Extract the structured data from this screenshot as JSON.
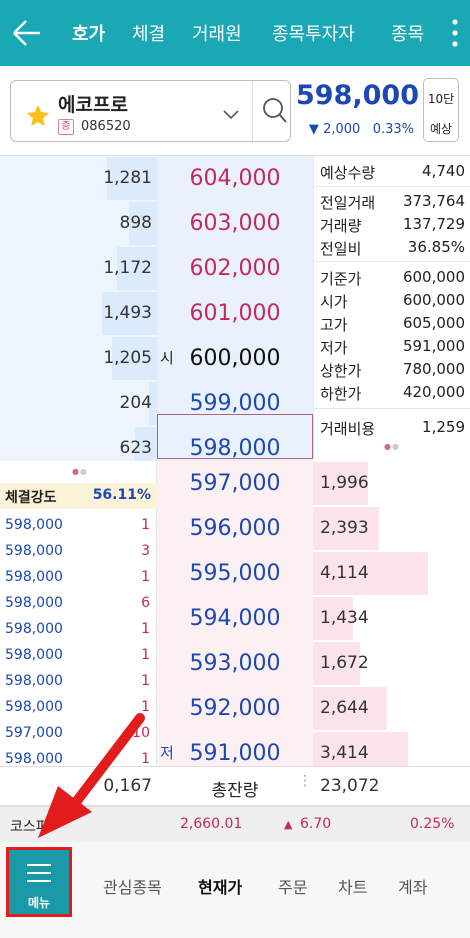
{
  "header": {
    "tabs": [
      {
        "label": "호가",
        "active": true
      },
      {
        "label": "체결",
        "active": false
      },
      {
        "label": "거래원",
        "active": false
      },
      {
        "label": "종목투자자",
        "active": false
      },
      {
        "label": "종목",
        "active": false
      }
    ]
  },
  "stock": {
    "name": "에코프로",
    "market_badge": "증",
    "code": "086520",
    "price": "598,000",
    "change": "2,000",
    "change_pct": "0.33%",
    "depth_button": "10단",
    "expect_button": "예상"
  },
  "orderbook": {
    "sell_rows": [
      {
        "qty": "1,281",
        "price": "604,000",
        "mark": ""
      },
      {
        "qty": "898",
        "price": "603,000",
        "mark": ""
      },
      {
        "qty": "1,172",
        "price": "602,000",
        "mark": ""
      },
      {
        "qty": "1,493",
        "price": "601,000",
        "mark": ""
      },
      {
        "qty": "1,205",
        "price": "600,000",
        "mark": "시"
      },
      {
        "qty": "204",
        "price": "599,000",
        "mark": ""
      },
      {
        "qty": "623",
        "price": "598,000",
        "mark": ""
      }
    ],
    "buy_rows": [
      {
        "price": "597,000",
        "qty": "1,996",
        "mark": ""
      },
      {
        "price": "596,000",
        "qty": "2,393",
        "mark": ""
      },
      {
        "price": "595,000",
        "qty": "4,114",
        "mark": ""
      },
      {
        "price": "594,000",
        "qty": "1,434",
        "mark": ""
      },
      {
        "price": "593,000",
        "qty": "1,672",
        "mark": ""
      },
      {
        "price": "592,000",
        "qty": "2,644",
        "mark": ""
      },
      {
        "price": "591,000",
        "qty": "3,414",
        "mark": "저"
      }
    ],
    "total_label": "총잔량",
    "total_sell": "0,167",
    "total_buy": "23,072"
  },
  "stats": {
    "expected_qty_label": "예상수량",
    "expected_qty": "4,740",
    "prev_volume_label": "전일거래",
    "prev_volume": "373,764",
    "volume_label": "거래량",
    "volume": "137,729",
    "prev_ratio_label": "전일비",
    "prev_ratio": "36.85%",
    "base_label": "기준가",
    "base": "600,000",
    "open_label": "시가",
    "open": "600,000",
    "high_label": "고가",
    "high": "605,000",
    "low_label": "저가",
    "low": "591,000",
    "upper_label": "상한가",
    "upper": "780,000",
    "lower_label": "하한가",
    "lower": "420,000",
    "fee_label": "거래비용",
    "fee": "1,259"
  },
  "trades": {
    "strength_label": "체결강도",
    "strength_value": "56.11%",
    "rows": [
      {
        "price": "598,000",
        "qty": "1"
      },
      {
        "price": "598,000",
        "qty": "3"
      },
      {
        "price": "598,000",
        "qty": "1"
      },
      {
        "price": "598,000",
        "qty": "6"
      },
      {
        "price": "598,000",
        "qty": "1"
      },
      {
        "price": "598,000",
        "qty": "1"
      },
      {
        "price": "598,000",
        "qty": "1"
      },
      {
        "price": "598,000",
        "qty": "1"
      },
      {
        "price": "597,000",
        "qty": "10"
      },
      {
        "price": "598,000",
        "qty": "1"
      }
    ]
  },
  "kospi": {
    "label": "코스피",
    "value": "2,660.01",
    "change": "6.70",
    "change_pct": "0.25%"
  },
  "bottom_nav": {
    "menu_label": "메뉴",
    "items": [
      "관심종목",
      "현재가",
      "주문",
      "차트",
      "계좌"
    ]
  },
  "colors": {
    "header": "#1aa8b5",
    "up_red": "#c5295c",
    "down_blue": "#1b48b4",
    "highlight_red": "#e21b1b"
  }
}
